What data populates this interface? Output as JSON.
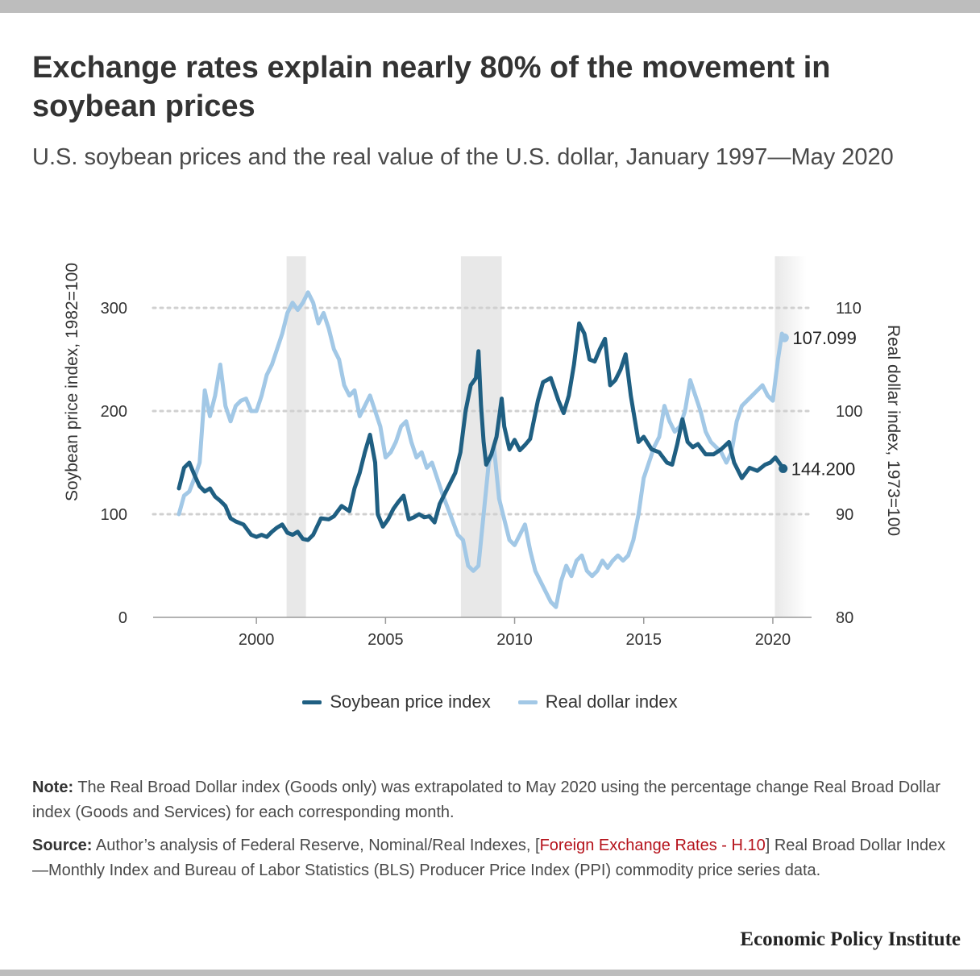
{
  "title": "Exchange rates explain nearly 80% of the movement in soybean prices",
  "subtitle": "U.S. soybean prices and the real value of the U.S. dollar, January 1997—May 2020",
  "legend": {
    "soy": "Soybean price index",
    "dollar": "Real dollar index"
  },
  "note": {
    "label": "Note:",
    "text": "The Real Broad Dollar index (Goods only) was extrapolated to May 2020 using the percentage change Real Broad Dollar index (Goods and Services) for each corresponding month."
  },
  "source": {
    "label": "Source:",
    "text_before": "Author’s analysis of Federal Reserve, Nominal/Real Indexes, [",
    "link": "Foreign Exchange Rates - H.10",
    "text_after": "] Real Broad Dollar Index—Monthly Index and Bureau of Labor Statistics (BLS) Producer Price Index (PPI) commodity price series data."
  },
  "brand": "Economic Policy Institute",
  "colors": {
    "soy": "#1f5f82",
    "dollar": "#a2c8e6",
    "recession": "#e8e8e8",
    "grid": "#d0d0d0"
  },
  "chart_data": {
    "type": "line",
    "xlabel": "",
    "ylabel_left": "Soybean price index, 1982=100",
    "ylabel_right": "Real dollar index, 1973=100",
    "xlim": [
      1996.0,
      2021.5
    ],
    "ylim_left": [
      0,
      300
    ],
    "ylim_right": [
      80,
      110
    ],
    "x_ticks": [
      2000,
      2005,
      2010,
      2015,
      2020
    ],
    "y_ticks_left": [
      0,
      100,
      200,
      300
    ],
    "y_ticks_right": [
      80,
      90,
      100,
      110
    ],
    "grid": "horizontal dotted",
    "recessions": [
      [
        2001.17,
        2001.92
      ],
      [
        2007.92,
        2009.5
      ],
      [
        2020.08,
        2021.3
      ]
    ],
    "end_labels": {
      "dollar": "107.099",
      "soy": "144.200"
    },
    "series": [
      {
        "name": "Soybean price index",
        "axis": "left",
        "points": [
          [
            1997.0,
            125
          ],
          [
            1997.2,
            145
          ],
          [
            1997.4,
            150
          ],
          [
            1997.6,
            138
          ],
          [
            1997.8,
            127
          ],
          [
            1998.0,
            122
          ],
          [
            1998.2,
            125
          ],
          [
            1998.4,
            117
          ],
          [
            1998.6,
            113
          ],
          [
            1998.8,
            108
          ],
          [
            1999.0,
            96
          ],
          [
            1999.2,
            93
          ],
          [
            1999.5,
            90
          ],
          [
            1999.8,
            80
          ],
          [
            2000.0,
            78
          ],
          [
            2000.2,
            80
          ],
          [
            2000.4,
            78
          ],
          [
            2000.6,
            83
          ],
          [
            2000.8,
            87
          ],
          [
            2001.0,
            90
          ],
          [
            2001.2,
            82
          ],
          [
            2001.4,
            80
          ],
          [
            2001.6,
            83
          ],
          [
            2001.8,
            76
          ],
          [
            2002.0,
            75
          ],
          [
            2002.2,
            80
          ],
          [
            2002.5,
            96
          ],
          [
            2002.8,
            95
          ],
          [
            2003.0,
            98
          ],
          [
            2003.3,
            108
          ],
          [
            2003.6,
            103
          ],
          [
            2003.8,
            125
          ],
          [
            2004.0,
            140
          ],
          [
            2004.2,
            160
          ],
          [
            2004.4,
            177
          ],
          [
            2004.6,
            150
          ],
          [
            2004.7,
            100
          ],
          [
            2004.9,
            88
          ],
          [
            2005.1,
            95
          ],
          [
            2005.3,
            105
          ],
          [
            2005.5,
            112
          ],
          [
            2005.7,
            118
          ],
          [
            2005.9,
            95
          ],
          [
            2006.1,
            97
          ],
          [
            2006.3,
            100
          ],
          [
            2006.5,
            97
          ],
          [
            2006.7,
            98
          ],
          [
            2006.9,
            92
          ],
          [
            2007.1,
            110
          ],
          [
            2007.3,
            120
          ],
          [
            2007.5,
            130
          ],
          [
            2007.7,
            140
          ],
          [
            2007.9,
            160
          ],
          [
            2008.1,
            200
          ],
          [
            2008.3,
            225
          ],
          [
            2008.5,
            232
          ],
          [
            2008.6,
            258
          ],
          [
            2008.7,
            205
          ],
          [
            2008.8,
            170
          ],
          [
            2008.9,
            148
          ],
          [
            2009.1,
            158
          ],
          [
            2009.3,
            175
          ],
          [
            2009.5,
            212
          ],
          [
            2009.6,
            185
          ],
          [
            2009.8,
            163
          ],
          [
            2010.0,
            172
          ],
          [
            2010.2,
            162
          ],
          [
            2010.4,
            167
          ],
          [
            2010.6,
            173
          ],
          [
            2010.9,
            210
          ],
          [
            2011.1,
            228
          ],
          [
            2011.4,
            232
          ],
          [
            2011.7,
            210
          ],
          [
            2011.9,
            198
          ],
          [
            2012.1,
            215
          ],
          [
            2012.3,
            245
          ],
          [
            2012.5,
            285
          ],
          [
            2012.7,
            275
          ],
          [
            2012.9,
            250
          ],
          [
            2013.1,
            248
          ],
          [
            2013.3,
            260
          ],
          [
            2013.5,
            270
          ],
          [
            2013.7,
            225
          ],
          [
            2013.9,
            230
          ],
          [
            2014.1,
            240
          ],
          [
            2014.3,
            255
          ],
          [
            2014.5,
            215
          ],
          [
            2014.8,
            170
          ],
          [
            2015.0,
            175
          ],
          [
            2015.3,
            163
          ],
          [
            2015.6,
            160
          ],
          [
            2015.9,
            150
          ],
          [
            2016.1,
            148
          ],
          [
            2016.3,
            168
          ],
          [
            2016.5,
            192
          ],
          [
            2016.7,
            170
          ],
          [
            2016.9,
            165
          ],
          [
            2017.1,
            168
          ],
          [
            2017.4,
            158
          ],
          [
            2017.7,
            158
          ],
          [
            2018.0,
            163
          ],
          [
            2018.3,
            170
          ],
          [
            2018.5,
            150
          ],
          [
            2018.8,
            135
          ],
          [
            2019.1,
            145
          ],
          [
            2019.4,
            142
          ],
          [
            2019.7,
            148
          ],
          [
            2019.9,
            150
          ],
          [
            2020.1,
            155
          ],
          [
            2020.3,
            148
          ],
          [
            2020.4,
            144.2
          ]
        ]
      },
      {
        "name": "Real dollar index",
        "axis": "right",
        "points": [
          [
            1997.0,
            90.0
          ],
          [
            1997.2,
            91.8
          ],
          [
            1997.4,
            92.2
          ],
          [
            1997.6,
            93.5
          ],
          [
            1997.8,
            95.0
          ],
          [
            1998.0,
            102.0
          ],
          [
            1998.2,
            99.5
          ],
          [
            1998.4,
            101.5
          ],
          [
            1998.6,
            104.5
          ],
          [
            1998.8,
            100.5
          ],
          [
            1999.0,
            99.0
          ],
          [
            1999.2,
            100.5
          ],
          [
            1999.4,
            101.0
          ],
          [
            1999.6,
            101.2
          ],
          [
            1999.8,
            100.0
          ],
          [
            2000.0,
            100.0
          ],
          [
            2000.2,
            101.5
          ],
          [
            2000.4,
            103.5
          ],
          [
            2000.6,
            104.5
          ],
          [
            2000.8,
            106.0
          ],
          [
            2001.0,
            107.5
          ],
          [
            2001.2,
            109.5
          ],
          [
            2001.4,
            110.5
          ],
          [
            2001.6,
            109.8
          ],
          [
            2001.8,
            110.5
          ],
          [
            2002.0,
            111.5
          ],
          [
            2002.2,
            110.5
          ],
          [
            2002.4,
            108.5
          ],
          [
            2002.6,
            109.5
          ],
          [
            2002.8,
            108.0
          ],
          [
            2003.0,
            106.0
          ],
          [
            2003.2,
            105.0
          ],
          [
            2003.4,
            102.5
          ],
          [
            2003.6,
            101.5
          ],
          [
            2003.8,
            102.0
          ],
          [
            2004.0,
            99.5
          ],
          [
            2004.2,
            100.5
          ],
          [
            2004.4,
            101.5
          ],
          [
            2004.6,
            100.0
          ],
          [
            2004.8,
            98.5
          ],
          [
            2005.0,
            95.5
          ],
          [
            2005.2,
            96.0
          ],
          [
            2005.4,
            97.0
          ],
          [
            2005.6,
            98.5
          ],
          [
            2005.8,
            99.0
          ],
          [
            2006.0,
            97.0
          ],
          [
            2006.2,
            95.5
          ],
          [
            2006.4,
            96.0
          ],
          [
            2006.6,
            94.5
          ],
          [
            2006.8,
            95.0
          ],
          [
            2007.0,
            93.5
          ],
          [
            2007.2,
            92.0
          ],
          [
            2007.5,
            90.0
          ],
          [
            2007.8,
            88.0
          ],
          [
            2008.0,
            87.5
          ],
          [
            2008.2,
            85.0
          ],
          [
            2008.4,
            84.5
          ],
          [
            2008.6,
            85.0
          ],
          [
            2008.8,
            90.0
          ],
          [
            2009.0,
            95.0
          ],
          [
            2009.2,
            96.5
          ],
          [
            2009.4,
            91.5
          ],
          [
            2009.6,
            89.5
          ],
          [
            2009.8,
            87.5
          ],
          [
            2010.0,
            87.0
          ],
          [
            2010.2,
            88.0
          ],
          [
            2010.4,
            89.0
          ],
          [
            2010.6,
            86.5
          ],
          [
            2010.8,
            84.5
          ],
          [
            2011.0,
            83.5
          ],
          [
            2011.2,
            82.5
          ],
          [
            2011.4,
            81.5
          ],
          [
            2011.6,
            81.0
          ],
          [
            2011.8,
            83.5
          ],
          [
            2012.0,
            85.0
          ],
          [
            2012.2,
            84.0
          ],
          [
            2012.4,
            85.5
          ],
          [
            2012.6,
            86.0
          ],
          [
            2012.8,
            84.5
          ],
          [
            2013.0,
            84.0
          ],
          [
            2013.2,
            84.5
          ],
          [
            2013.4,
            85.5
          ],
          [
            2013.6,
            84.8
          ],
          [
            2013.8,
            85.5
          ],
          [
            2014.0,
            86.0
          ],
          [
            2014.2,
            85.5
          ],
          [
            2014.4,
            86.0
          ],
          [
            2014.6,
            87.5
          ],
          [
            2014.8,
            90.0
          ],
          [
            2015.0,
            93.5
          ],
          [
            2015.2,
            95.0
          ],
          [
            2015.4,
            96.5
          ],
          [
            2015.6,
            97.5
          ],
          [
            2015.8,
            100.5
          ],
          [
            2016.0,
            99.0
          ],
          [
            2016.2,
            98.0
          ],
          [
            2016.4,
            98.5
          ],
          [
            2016.6,
            100.0
          ],
          [
            2016.8,
            103.0
          ],
          [
            2017.0,
            101.5
          ],
          [
            2017.2,
            100.0
          ],
          [
            2017.4,
            98.0
          ],
          [
            2017.6,
            97.0
          ],
          [
            2017.8,
            96.5
          ],
          [
            2018.0,
            96.0
          ],
          [
            2018.2,
            95.0
          ],
          [
            2018.4,
            96.0
          ],
          [
            2018.6,
            99.0
          ],
          [
            2018.8,
            100.5
          ],
          [
            2019.0,
            101.0
          ],
          [
            2019.2,
            101.5
          ],
          [
            2019.4,
            102.0
          ],
          [
            2019.6,
            102.5
          ],
          [
            2019.8,
            101.5
          ],
          [
            2020.0,
            101.0
          ],
          [
            2020.2,
            105.0
          ],
          [
            2020.35,
            107.5
          ],
          [
            2020.45,
            107.099
          ]
        ]
      }
    ]
  }
}
